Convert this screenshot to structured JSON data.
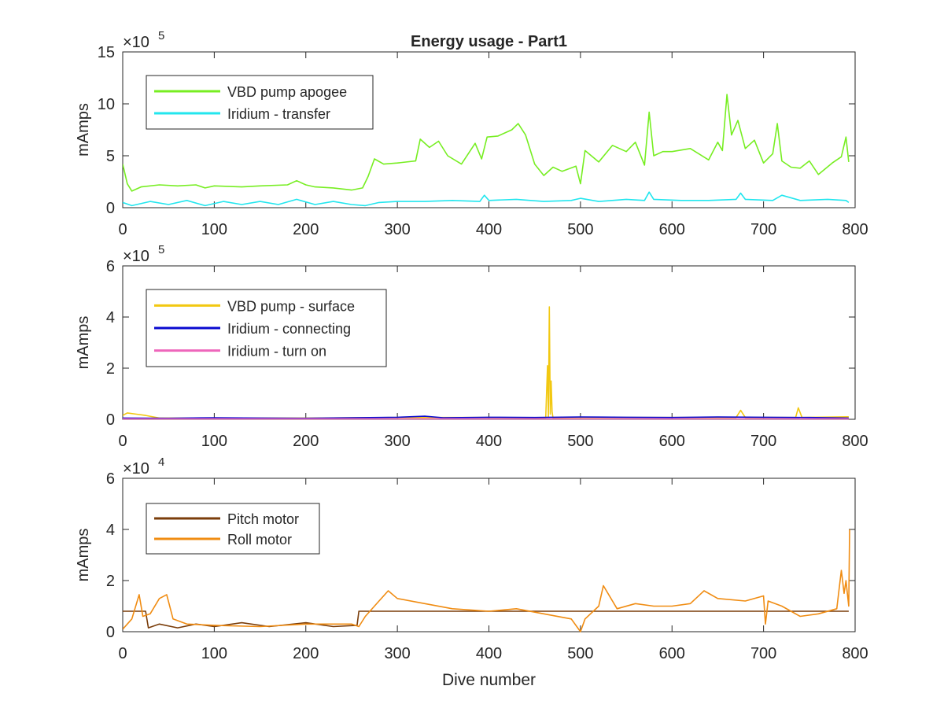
{
  "chart_data": [
    {
      "type": "line",
      "title": "Energy usage - Part1",
      "xlabel": "",
      "ylabel": "mAmps",
      "exponent_label": "×10",
      "exponent_power": "5",
      "xlim": [
        0,
        800
      ],
      "ylim": [
        0,
        15
      ],
      "xticks": [
        0,
        100,
        200,
        300,
        400,
        500,
        600,
        700,
        800
      ],
      "yticks": [
        0,
        5,
        10,
        15
      ],
      "legend_position": "top-left",
      "series": [
        {
          "name": "VBD pump apogee",
          "color": "#77ee22",
          "x": [
            0,
            5,
            10,
            20,
            40,
            60,
            80,
            90,
            100,
            130,
            150,
            180,
            190,
            200,
            210,
            230,
            250,
            262,
            268,
            275,
            285,
            300,
            320,
            325,
            335,
            345,
            355,
            370,
            385,
            392,
            398,
            410,
            425,
            432,
            440,
            450,
            460,
            470,
            480,
            495,
            500,
            505,
            520,
            535,
            550,
            560,
            570,
            575,
            580,
            590,
            600,
            620,
            640,
            650,
            655,
            660,
            665,
            672,
            680,
            690,
            700,
            710,
            715,
            720,
            730,
            740,
            750,
            760,
            775,
            785,
            790,
            793
          ],
          "y": [
            4.2,
            2.3,
            1.6,
            2.0,
            2.2,
            2.1,
            2.2,
            1.9,
            2.1,
            2.0,
            2.1,
            2.2,
            2.6,
            2.2,
            2.0,
            1.9,
            1.7,
            1.9,
            3.0,
            4.7,
            4.2,
            4.3,
            4.5,
            6.6,
            5.8,
            6.4,
            5.0,
            4.2,
            6.2,
            4.7,
            6.8,
            6.9,
            7.5,
            8.1,
            7.0,
            4.2,
            3.1,
            3.9,
            3.5,
            4.0,
            2.3,
            5.5,
            4.4,
            6.0,
            5.4,
            6.3,
            4.1,
            9.2,
            5.0,
            5.4,
            5.4,
            5.7,
            4.6,
            6.3,
            5.5,
            10.9,
            7.0,
            8.4,
            5.7,
            6.5,
            4.3,
            5.2,
            8.1,
            4.5,
            3.9,
            3.8,
            4.5,
            3.2,
            4.3,
            4.9,
            6.8,
            4.4
          ]
        },
        {
          "name": "Iridium - transfer",
          "color": "#22e6ee",
          "x": [
            0,
            10,
            30,
            50,
            70,
            90,
            110,
            130,
            150,
            170,
            190,
            210,
            230,
            250,
            265,
            280,
            300,
            330,
            360,
            390,
            395,
            400,
            430,
            460,
            490,
            500,
            520,
            550,
            570,
            575,
            580,
            610,
            640,
            670,
            675,
            680,
            710,
            720,
            740,
            770,
            790,
            793
          ],
          "y": [
            0.5,
            0.2,
            0.6,
            0.3,
            0.7,
            0.2,
            0.6,
            0.3,
            0.6,
            0.3,
            0.8,
            0.3,
            0.6,
            0.3,
            0.2,
            0.5,
            0.6,
            0.6,
            0.7,
            0.6,
            1.2,
            0.7,
            0.8,
            0.6,
            0.7,
            0.9,
            0.6,
            0.8,
            0.7,
            1.5,
            0.8,
            0.7,
            0.7,
            0.8,
            1.4,
            0.8,
            0.7,
            1.2,
            0.7,
            0.8,
            0.7,
            0.5
          ]
        }
      ]
    },
    {
      "type": "line",
      "title": "",
      "xlabel": "",
      "ylabel": "mAmps",
      "exponent_label": "×10",
      "exponent_power": "5",
      "xlim": [
        0,
        800
      ],
      "ylim": [
        0,
        6
      ],
      "xticks": [
        0,
        100,
        200,
        300,
        400,
        500,
        600,
        700,
        800
      ],
      "yticks": [
        0,
        2,
        4,
        6
      ],
      "legend_position": "top-left",
      "series": [
        {
          "name": "VBD pump - surface",
          "color": "#f2c811",
          "x": [
            0,
            5,
            15,
            25,
            40,
            100,
            200,
            300,
            400,
            462,
            464,
            465,
            466,
            467,
            468,
            469,
            470,
            500,
            600,
            670,
            675,
            680,
            735,
            738,
            742,
            793
          ],
          "y": [
            0.15,
            0.25,
            0.2,
            0.15,
            0.05,
            0.05,
            0.05,
            0.07,
            0.07,
            0.05,
            2.1,
            0.1,
            4.4,
            0.2,
            1.5,
            0.3,
            0.05,
            0.07,
            0.07,
            0.07,
            0.35,
            0.07,
            0.07,
            0.45,
            0.07,
            0.1
          ]
        },
        {
          "name": "Iridium - connecting",
          "color": "#0a0ad0",
          "x": [
            0,
            50,
            100,
            150,
            200,
            250,
            300,
            330,
            350,
            400,
            450,
            500,
            550,
            600,
            650,
            700,
            750,
            793
          ],
          "y": [
            0.05,
            0.04,
            0.06,
            0.05,
            0.04,
            0.06,
            0.08,
            0.12,
            0.06,
            0.08,
            0.07,
            0.09,
            0.08,
            0.07,
            0.09,
            0.08,
            0.07,
            0.05
          ]
        },
        {
          "name": "Iridium - turn on",
          "color": "#ee66bb",
          "x": [
            0,
            200,
            400,
            600,
            793
          ],
          "y": [
            0.02,
            0.02,
            0.02,
            0.02,
            0.02
          ]
        }
      ]
    },
    {
      "type": "line",
      "title": "",
      "xlabel": "Dive number",
      "ylabel": "mAmps",
      "exponent_label": "×10",
      "exponent_power": "4",
      "xlim": [
        0,
        800
      ],
      "ylim": [
        0,
        6
      ],
      "xticks": [
        0,
        100,
        200,
        300,
        400,
        500,
        600,
        700,
        800
      ],
      "yticks": [
        0,
        2,
        4,
        6
      ],
      "legend_position": "top-left",
      "series": [
        {
          "name": "Pitch motor",
          "color": "#7a3d0a",
          "x": [
            0,
            25,
            28,
            40,
            60,
            80,
            100,
            130,
            160,
            200,
            230,
            256,
            258,
            300,
            400,
            500,
            600,
            700,
            785,
            793
          ],
          "y": [
            0.8,
            0.8,
            0.15,
            0.3,
            0.15,
            0.3,
            0.2,
            0.35,
            0.2,
            0.35,
            0.2,
            0.25,
            0.8,
            0.8,
            0.8,
            0.8,
            0.8,
            0.8,
            0.8,
            0.8
          ]
        },
        {
          "name": "Roll motor",
          "color": "#f08c12",
          "x": [
            0,
            10,
            18,
            22,
            30,
            40,
            48,
            55,
            70,
            100,
            150,
            200,
            250,
            258,
            265,
            280,
            290,
            300,
            330,
            360,
            400,
            430,
            460,
            490,
            500,
            505,
            520,
            525,
            540,
            560,
            580,
            600,
            620,
            635,
            650,
            680,
            700,
            702,
            705,
            720,
            740,
            760,
            780,
            785,
            788,
            790,
            793,
            794
          ],
          "y": [
            0.1,
            0.5,
            1.45,
            0.6,
            0.7,
            1.3,
            1.45,
            0.5,
            0.3,
            0.25,
            0.2,
            0.3,
            0.3,
            0.2,
            0.6,
            1.2,
            1.6,
            1.3,
            1.1,
            0.9,
            0.8,
            0.9,
            0.7,
            0.5,
            0.0,
            0.5,
            1.0,
            1.8,
            0.9,
            1.1,
            1.0,
            1.0,
            1.1,
            1.6,
            1.3,
            1.2,
            1.4,
            0.3,
            1.2,
            1.0,
            0.6,
            0.7,
            0.9,
            2.4,
            1.5,
            2.0,
            1.0,
            4.0
          ]
        }
      ]
    }
  ]
}
